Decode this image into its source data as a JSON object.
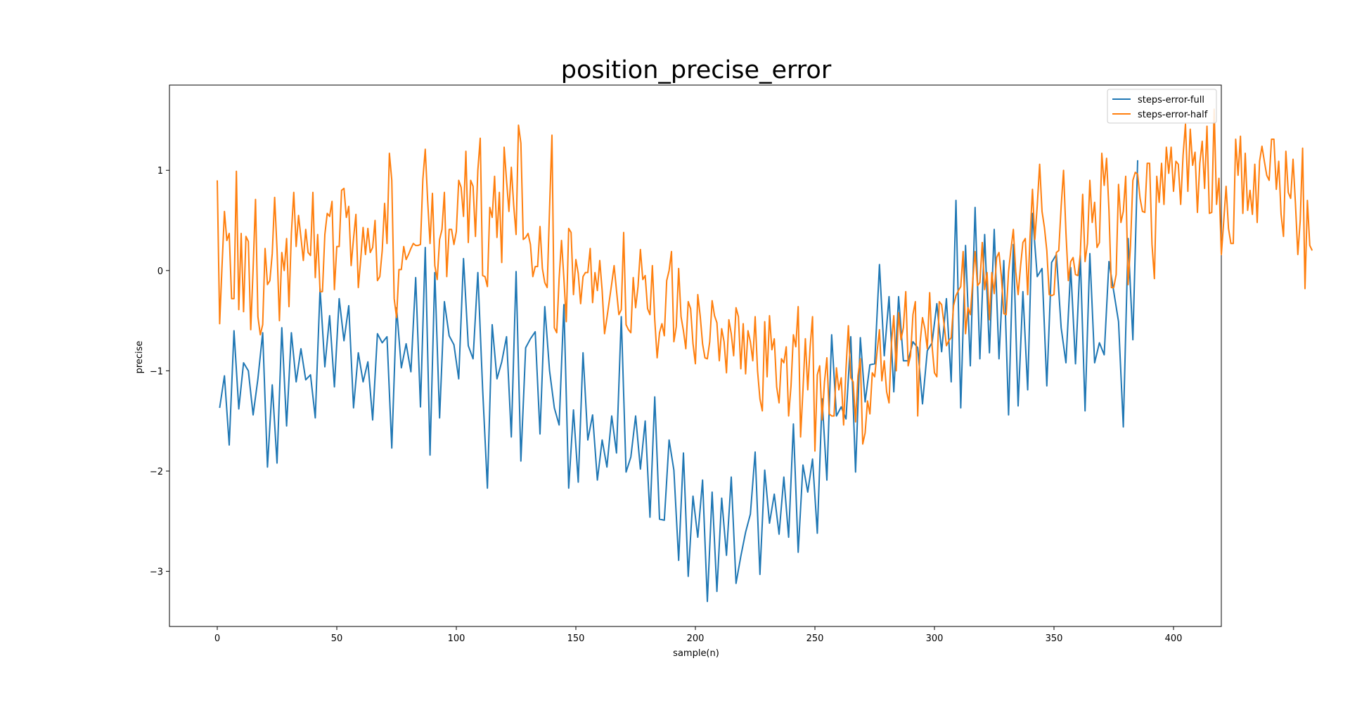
{
  "chart_data": {
    "type": "line",
    "title": "position_precise_error",
    "xlabel": "sample(n)",
    "ylabel": "precise",
    "xlim": [
      -20,
      420
    ],
    "ylim": [
      -3.55,
      1.85
    ],
    "xticks": [
      0,
      50,
      100,
      150,
      200,
      250,
      300,
      350,
      400
    ],
    "yticks": [
      -3,
      -2,
      -1,
      0,
      1
    ],
    "grid": false,
    "legend_position": "top-right",
    "series": [
      {
        "name": "steps-error-full",
        "color": "#1f77b4",
        "step": 2,
        "x_start": 1,
        "y": [
          -1.37,
          -1.05,
          -1.74,
          -0.6,
          -1.38,
          -0.92,
          -1.0,
          -1.44,
          -1.08,
          -0.62,
          -1.96,
          -1.14,
          -1.92,
          -0.57,
          -1.55,
          -0.62,
          -1.11,
          -0.78,
          -1.09,
          -1.04,
          -1.47,
          -0.18,
          -0.96,
          -0.45,
          -1.16,
          -0.28,
          -0.7,
          -0.35,
          -1.37,
          -0.82,
          -1.11,
          -0.91,
          -1.49,
          -0.63,
          -0.72,
          -0.66,
          -1.77,
          -0.37,
          -0.97,
          -0.73,
          -1.01,
          -0.07,
          -1.36,
          0.23,
          -1.84,
          -0.02,
          -1.47,
          -0.31,
          -0.65,
          -0.74,
          -1.08,
          0.12,
          -0.75,
          -0.88,
          -0.02,
          -1.18,
          -2.17,
          -0.54,
          -1.08,
          -0.91,
          -0.66,
          -1.66,
          -0.01,
          -1.9,
          -0.77,
          -0.68,
          -0.61,
          -1.63,
          -0.36,
          -1.0,
          -1.37,
          -1.54,
          -0.34,
          -2.17,
          -1.39,
          -2.11,
          -0.82,
          -1.69,
          -1.44,
          -2.09,
          -1.69,
          -1.96,
          -1.45,
          -1.82,
          -0.46,
          -2.01,
          -1.86,
          -1.45,
          -1.98,
          -1.5,
          -2.46,
          -1.26,
          -2.48,
          -2.49,
          -1.69,
          -1.99,
          -2.89,
          -1.82,
          -3.05,
          -2.25,
          -2.66,
          -2.09,
          -3.3,
          -2.21,
          -3.2,
          -2.27,
          -2.84,
          -2.06,
          -3.12,
          -2.85,
          -2.61,
          -2.43,
          -1.81,
          -3.03,
          -1.99,
          -2.52,
          -2.23,
          -2.63,
          -2.06,
          -2.66,
          -1.53,
          -2.81,
          -1.94,
          -2.21,
          -1.88,
          -2.62,
          -1.28,
          -2.09,
          -0.64,
          -1.45,
          -1.36,
          -1.48,
          -0.66,
          -2.01,
          -0.67,
          -1.31,
          -0.94,
          -0.93,
          0.06,
          -0.85,
          -0.26,
          -1.21,
          -0.26,
          -0.9,
          -0.9,
          -0.71,
          -0.77,
          -1.33,
          -0.8,
          -0.72,
          -0.33,
          -0.81,
          -0.28,
          -1.11,
          0.7,
          -1.37,
          0.25,
          -0.95,
          0.63,
          -0.88,
          0.36,
          -0.82,
          0.41,
          -0.88,
          0.1,
          -1.44,
          0.26,
          -1.35,
          -0.21,
          -1.19,
          0.57,
          -0.06,
          0.02,
          -1.15,
          0.08,
          0.16,
          -0.57,
          -0.92,
          0.03,
          -0.93,
          0.15,
          -1.4,
          0.17,
          -0.92,
          -0.72,
          -0.84,
          0.09,
          -0.21,
          -0.51,
          -1.56,
          0.32,
          -0.69,
          1.1
        ]
      },
      {
        "name": "steps-error-half",
        "color": "#ff7f0e",
        "step": 1,
        "x_start": 0,
        "y": [
          0.9,
          -0.53,
          0.05,
          0.59,
          0.3,
          0.37,
          -0.28,
          -0.28,
          0.99,
          -0.39,
          0.37,
          -0.41,
          0.34,
          0.29,
          -0.59,
          0.02,
          0.71,
          -0.46,
          -0.64,
          -0.54,
          0.22,
          -0.14,
          -0.1,
          0.17,
          0.73,
          0.21,
          -0.5,
          0.18,
          0.0,
          0.32,
          -0.36,
          0.37,
          0.78,
          0.24,
          0.55,
          0.33,
          0.1,
          0.41,
          0.18,
          0.15,
          0.78,
          -0.07,
          0.36,
          -0.21,
          -0.21,
          0.36,
          0.57,
          0.54,
          0.69,
          -0.19,
          0.24,
          0.24,
          0.8,
          0.82,
          0.53,
          0.64,
          0.05,
          0.32,
          0.56,
          -0.17,
          0.11,
          0.43,
          0.16,
          0.42,
          0.18,
          0.23,
          0.5,
          -0.1,
          -0.06,
          0.2,
          0.67,
          0.27,
          1.17,
          0.9,
          -0.28,
          -0.47,
          0.01,
          0.01,
          0.24,
          0.11,
          0.16,
          0.22,
          0.27,
          0.25,
          0.25,
          0.26,
          0.91,
          1.21,
          0.7,
          0.27,
          0.77,
          0.05,
          -0.09,
          0.31,
          0.41,
          0.78,
          -0.06,
          0.41,
          0.41,
          0.26,
          0.39,
          0.9,
          0.83,
          0.54,
          1.19,
          0.28,
          0.9,
          0.84,
          0.34,
          1.0,
          1.32,
          -0.05,
          -0.06,
          -0.16,
          0.63,
          0.53,
          0.94,
          0.33,
          0.78,
          0.08,
          1.23,
          0.9,
          0.59,
          1.03,
          0.65,
          0.36,
          1.45,
          1.27,
          0.31,
          0.33,
          0.37,
          0.26,
          -0.06,
          0.04,
          0.04,
          0.44,
          0.02,
          -0.12,
          -0.17,
          0.62,
          1.35,
          -0.57,
          -0.62,
          -0.08,
          0.3,
          -0.08,
          -0.51,
          0.42,
          0.38,
          -0.24,
          0.11,
          -0.03,
          -0.33,
          -0.06,
          -0.02,
          -0.02,
          0.22,
          -0.32,
          -0.02,
          -0.2,
          0.1,
          -0.2,
          -0.63,
          -0.47,
          -0.3,
          -0.13,
          0.05,
          -0.2,
          -0.44,
          -0.39,
          0.38,
          -0.54,
          -0.59,
          -0.62,
          -0.07,
          -0.37,
          -0.16,
          0.21,
          -0.09,
          -0.05,
          -0.38,
          -0.44,
          0.05,
          -0.49,
          -0.87,
          -0.62,
          -0.53,
          -0.65,
          -0.1,
          0.0,
          0.19,
          -0.71,
          -0.56,
          0.02,
          -0.46,
          -0.6,
          -0.78,
          -0.31,
          -0.38,
          -0.73,
          -0.93,
          -0.24,
          -0.45,
          -0.73,
          -0.87,
          -0.88,
          -0.71,
          -0.3,
          -0.45,
          -0.52,
          -0.9,
          -0.58,
          -0.71,
          -1.02,
          -0.49,
          -0.63,
          -0.85,
          -0.37,
          -0.46,
          -0.98,
          -0.53,
          -1.03,
          -0.6,
          -0.71,
          -0.9,
          -0.46,
          -1.0,
          -1.28,
          -1.4,
          -0.51,
          -1.06,
          -0.45,
          -0.79,
          -0.68,
          -1.16,
          -1.32,
          -0.88,
          -0.92,
          -0.76,
          -1.45,
          -1.15,
          -0.64,
          -0.76,
          -0.36,
          -1.66,
          -1.19,
          -0.68,
          -1.19,
          -0.76,
          -0.46,
          -1.8,
          -1.04,
          -0.95,
          -1.49,
          -1.11,
          -0.87,
          -1.43,
          -1.45,
          -1.45,
          -0.97,
          -1.19,
          -1.07,
          -1.54,
          -0.98,
          -0.55,
          -1.07,
          -1.11,
          -1.51,
          -1.05,
          -0.88,
          -1.73,
          -1.62,
          -1.3,
          -1.43,
          -1.02,
          -1.06,
          -0.81,
          -0.59,
          -1.1,
          -0.9,
          -1.21,
          -1.32,
          -0.73,
          -0.45,
          -1.0,
          -0.42,
          -0.69,
          -0.57,
          -0.21,
          -0.95,
          -0.85,
          -0.44,
          -0.31,
          -1.45,
          -0.72,
          -0.47,
          -0.58,
          -0.78,
          -0.22,
          -0.75,
          -1.02,
          -1.06,
          -0.31,
          -0.34,
          -0.53,
          -0.75,
          -0.7,
          -0.67,
          -0.35,
          -0.25,
          -0.2,
          -0.16,
          0.19,
          -0.63,
          -0.37,
          -0.44,
          -0.11,
          0.19,
          -0.15,
          -0.12,
          0.28,
          -0.19,
          -0.02,
          -0.49,
          -0.02,
          -0.23,
          0.13,
          0.18,
          -0.06,
          -0.43,
          -0.44,
          -0.01,
          0.21,
          0.41,
          -0.01,
          -0.24,
          0.04,
          0.28,
          0.32,
          -0.24,
          0.34,
          0.81,
          0.31,
          0.65,
          1.06,
          0.59,
          0.43,
          0.2,
          -0.24,
          -0.25,
          -0.24,
          0.18,
          0.2,
          0.64,
          1.0,
          0.38,
          -0.1,
          0.09,
          0.13,
          -0.04,
          -0.05,
          0.16,
          0.76,
          0.09,
          0.27,
          0.9,
          0.48,
          0.68,
          0.23,
          0.28,
          1.17,
          0.85,
          1.12,
          0.6,
          -0.17,
          -0.17,
          -0.04,
          0.86,
          0.48,
          0.59,
          0.94,
          -0.14,
          0.25,
          0.9,
          0.98,
          0.96,
          0.72,
          0.59,
          0.58,
          1.07,
          1.07,
          0.26,
          -0.08,
          0.94,
          0.68,
          1.07,
          0.66,
          1.23,
          0.97,
          1.23,
          0.79,
          1.09,
          1.06,
          0.66,
          1.15,
          1.46,
          0.79,
          1.41,
          1.05,
          1.18,
          0.58,
          1.07,
          1.29,
          0.82,
          1.44,
          0.57,
          0.58,
          1.61,
          0.66,
          0.92,
          0.16,
          0.49,
          0.84,
          0.42,
          0.27,
          0.27,
          1.31,
          0.95,
          1.34,
          0.57,
          1.17,
          0.6,
          0.8,
          0.56,
          1.06,
          0.48,
          1.09,
          1.24,
          1.09,
          0.95,
          0.9,
          1.31,
          1.31,
          0.81,
          1.09,
          0.56,
          0.34,
          1.19,
          0.78,
          0.72,
          1.11,
          0.67,
          0.16,
          0.5,
          1.22,
          -0.18,
          0.7,
          0.25,
          0.2
        ]
      }
    ]
  }
}
